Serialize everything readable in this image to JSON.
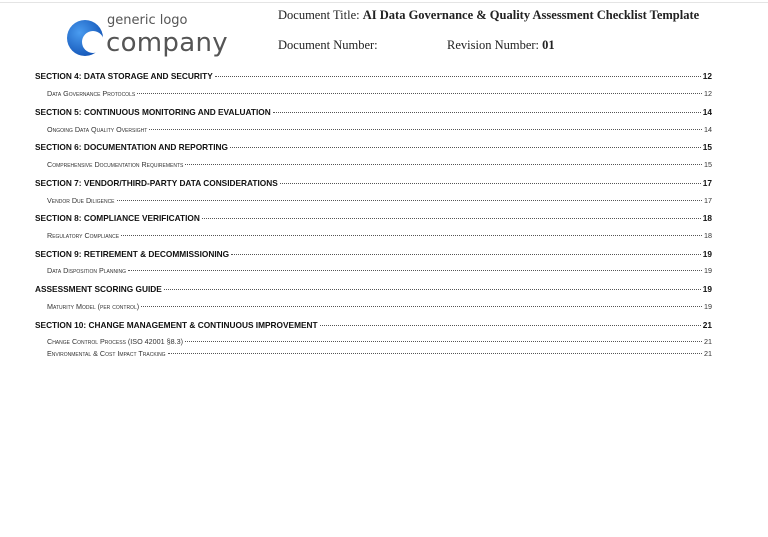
{
  "header": {
    "logo": {
      "small_text": "generic logo",
      "big_text": "company",
      "brand_color": "#1f6fd1"
    },
    "doc_title_label": "Document Title:",
    "doc_title_value": "AI Data Governance & Quality Assessment Checklist Template",
    "doc_number_label": "Document Number:",
    "revision_label": "Revision Number:",
    "revision_value": "01"
  },
  "toc": [
    {
      "level": 1,
      "title": "SECTION 4: DATA STORAGE AND SECURITY",
      "page": "12"
    },
    {
      "level": 2,
      "title": "Data Governance Protocols",
      "page": "12"
    },
    {
      "level": 1,
      "title": "SECTION 5: CONTINUOUS MONITORING AND EVALUATION",
      "page": "14"
    },
    {
      "level": 2,
      "title": "Ongoing Data Quality Oversight",
      "page": "14"
    },
    {
      "level": 1,
      "title": "SECTION 6: DOCUMENTATION AND REPORTING",
      "page": "15"
    },
    {
      "level": 2,
      "title": "Comprehensive Documentation Requirements",
      "page": "15"
    },
    {
      "level": 1,
      "title": "SECTION 7: VENDOR/THIRD-PARTY DATA CONSIDERATIONS",
      "page": "17"
    },
    {
      "level": 2,
      "title": "Vendor Due Diligence",
      "page": "17"
    },
    {
      "level": 1,
      "title": "SECTION 8: COMPLIANCE VERIFICATION",
      "page": "18"
    },
    {
      "level": 2,
      "title": "Regulatory Compliance",
      "page": "18"
    },
    {
      "level": 1,
      "title": "SECTION 9: RETIREMENT & DECOMMISSIONING",
      "page": "19"
    },
    {
      "level": 2,
      "title": "Data Disposition Planning",
      "page": "19"
    },
    {
      "level": 1,
      "title": "ASSESSMENT SCORING GUIDE",
      "page": "19"
    },
    {
      "level": 2,
      "title": "Maturity Model (per control)",
      "page": "19"
    },
    {
      "level": 1,
      "title": "SECTION 10: CHANGE MANAGEMENT & CONTINUOUS IMPROVEMENT",
      "page": "21"
    },
    {
      "level": 2,
      "title": "Change Control Process (ISO 42001 §8.3)",
      "page": "21"
    },
    {
      "level": 2,
      "title": "Environmental & Cost Impact Tracking",
      "page": "21"
    }
  ]
}
